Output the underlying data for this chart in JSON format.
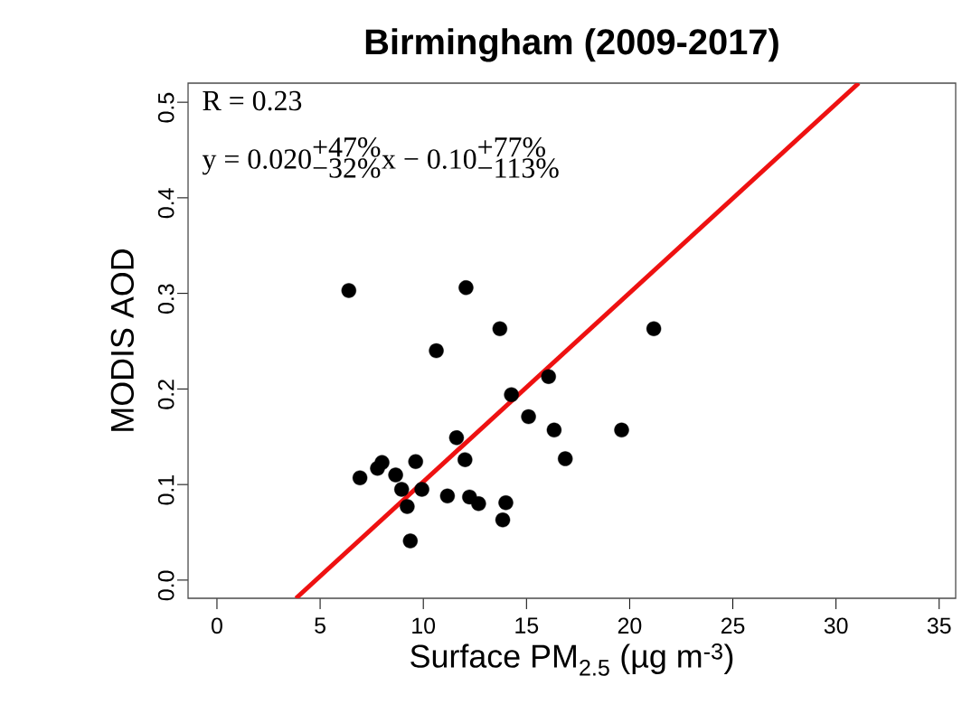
{
  "chart_data": {
    "type": "scatter",
    "title": "Birmingham (2009-2017)",
    "xlabel": "Surface PM$_{2.5}$ (µg m$^{-3}$)",
    "ylabel": "MODIS AOD",
    "annotations": [
      "R = 0.23",
      "\\mbox{y = 0.020}^{\\mbox{+47\\%}}_{\\mbox{−32\\%}}\\mbox{x − 0.10}^{\\mbox{+77\\%}}_{\\mbox{−113\\%}}"
    ],
    "xlim": [
      -1.4,
      35.8
    ],
    "ylim": [
      -0.019,
      0.52
    ],
    "xticks": [
      0,
      5,
      10,
      15,
      20,
      25,
      30,
      35
    ],
    "yticks": [
      {
        "value": 0,
        "label": "0.0"
      },
      0.1,
      0.2,
      0.3,
      0.4,
      0.5
    ],
    "grid": false,
    "series": [
      {
        "color": "#000000",
        "x": [
          6.39,
          12.07,
          13.71,
          21.17,
          10.63,
          16.07,
          14.27,
          15.1,
          16.34,
          19.61,
          11.61,
          16.88,
          12.02,
          9.63,
          8.0,
          7.78,
          6.93,
          8.66,
          8.95,
          9.93,
          11.17,
          12.24,
          12.68,
          14.0,
          9.22,
          13.85,
          9.37
        ],
        "values": [
          0.303,
          0.306,
          0.263,
          0.263,
          0.24,
          0.213,
          0.194,
          0.171,
          0.157,
          0.157,
          0.149,
          0.127,
          0.126,
          0.124,
          0.123,
          0.117,
          0.107,
          0.11,
          0.095,
          0.095,
          0.088,
          0.087,
          0.08,
          0.081,
          0.077,
          0.063,
          0.041
        ]
      },
      {
        "type": "line",
        "color": "#ee1111",
        "line_style": "solid",
        "x": [
          3.83,
          31.1
        ],
        "values": [
          -0.019,
          0.52
        ]
      }
    ]
  }
}
